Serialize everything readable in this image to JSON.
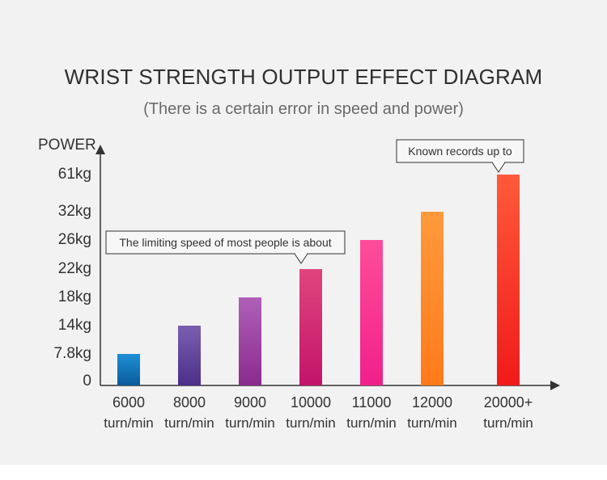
{
  "chart_data": {
    "type": "bar",
    "title": "WRIST STRENGTH OUTPUT EFFECT DIAGRAM",
    "subtitle": "(There is a certain error in speed and power)",
    "ylabel": "POWER",
    "xlabel": "",
    "categories": [
      {
        "value": "6000",
        "unit": "turn/min"
      },
      {
        "value": "8000",
        "unit": "turn/min"
      },
      {
        "value": "9000",
        "unit": "turn/min"
      },
      {
        "value": "10000",
        "unit": "turn/min"
      },
      {
        "value": "11000",
        "unit": "turn/min"
      },
      {
        "value": "12000",
        "unit": "turn/min"
      },
      {
        "value": "20000+",
        "unit": "turn/min"
      }
    ],
    "values": [
      7.8,
      14,
      18,
      22,
      26,
      32,
      61
    ],
    "y_ticks": [
      "0",
      "7.8kg",
      "14kg",
      "18kg",
      "22kg",
      "26kg",
      "32kg",
      "61kg"
    ],
    "y_tick_values": [
      0,
      7.8,
      14,
      18,
      22,
      26,
      32,
      61
    ],
    "bar_colors": [
      [
        "#1e8fd6",
        "#0a5b9a"
      ],
      [
        "#7a5fb0",
        "#4b2f8a"
      ],
      [
        "#b060b8",
        "#8a2a8e"
      ],
      [
        "#e0457e",
        "#c2146a"
      ],
      [
        "#ff4d9a",
        "#f0208a"
      ],
      [
        "#ff9a3c",
        "#ff7a1a"
      ],
      [
        "#ff5a3a",
        "#f01a1a"
      ]
    ],
    "annotations": [
      {
        "text": "The limiting speed of most people is about",
        "bar_index": 3
      },
      {
        "text": "Known records up to",
        "bar_index": 6
      }
    ]
  }
}
